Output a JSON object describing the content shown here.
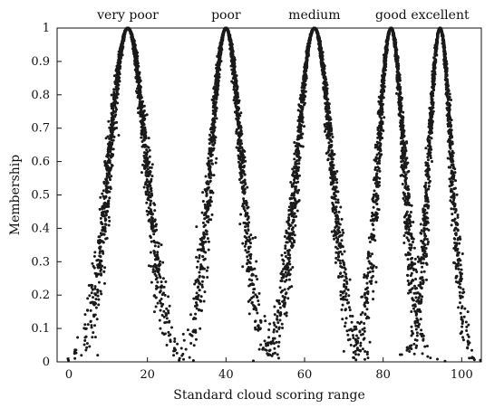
{
  "chart_data": {
    "type": "scatter",
    "description_type": "cloud model membership drops",
    "xlabel": "Standard cloud scoring range",
    "ylabel": "Membership",
    "xlim": [
      -3,
      105
    ],
    "ylim": [
      0,
      1
    ],
    "x_ticks": [
      0,
      20,
      40,
      60,
      80,
      100
    ],
    "y_ticks": [
      0,
      0.1,
      0.2,
      0.3,
      0.4,
      0.5,
      0.6,
      0.7,
      0.8,
      0.9,
      1
    ],
    "y_tick_labels": [
      "0",
      "0.1",
      "0.2",
      "0.3",
      "0.4",
      "0.5",
      "0.6",
      "0.7",
      "0.8",
      "0.9",
      "1"
    ],
    "grid": false,
    "marker_color": "#1a1a1a",
    "clouds": [
      {
        "label": "very poor",
        "Ex": 15,
        "En": 4.7,
        "He": 0.5,
        "drops": 1600
      },
      {
        "label": "poor",
        "Ex": 40,
        "En": 3.9,
        "He": 0.45,
        "drops": 1400
      },
      {
        "label": "medium",
        "Ex": 62.5,
        "En": 4.4,
        "He": 0.45,
        "drops": 1500
      },
      {
        "label": "good",
        "Ex": 82,
        "En": 3.3,
        "He": 0.4,
        "drops": 1300
      },
      {
        "label": "excellent",
        "Ex": 94.5,
        "En": 2.9,
        "He": 0.35,
        "drops": 1200
      }
    ]
  }
}
